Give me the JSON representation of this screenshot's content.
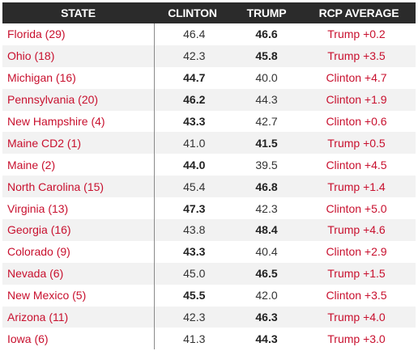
{
  "headers": {
    "state": "STATE",
    "clinton": "CLINTON",
    "trump": "TRUMP",
    "rcp": "RCP AVERAGE"
  },
  "rows": [
    {
      "state": "Florida (29)",
      "clinton": "46.4",
      "trump": "46.6",
      "rcp": "Trump +0.2",
      "leader": "trump"
    },
    {
      "state": "Ohio (18)",
      "clinton": "42.3",
      "trump": "45.8",
      "rcp": "Trump +3.5",
      "leader": "trump"
    },
    {
      "state": "Michigan (16)",
      "clinton": "44.7",
      "trump": "40.0",
      "rcp": "Clinton +4.7",
      "leader": "clinton"
    },
    {
      "state": "Pennsylvania (20)",
      "clinton": "46.2",
      "trump": "44.3",
      "rcp": "Clinton +1.9",
      "leader": "clinton"
    },
    {
      "state": "New Hampshire (4)",
      "clinton": "43.3",
      "trump": "42.7",
      "rcp": "Clinton +0.6",
      "leader": "clinton"
    },
    {
      "state": "Maine CD2 (1)",
      "clinton": "41.0",
      "trump": "41.5",
      "rcp": "Trump +0.5",
      "leader": "trump"
    },
    {
      "state": "Maine (2)",
      "clinton": "44.0",
      "trump": "39.5",
      "rcp": "Clinton +4.5",
      "leader": "clinton"
    },
    {
      "state": "North Carolina (15)",
      "clinton": "45.4",
      "trump": "46.8",
      "rcp": "Trump +1.4",
      "leader": "trump"
    },
    {
      "state": "Virginia (13)",
      "clinton": "47.3",
      "trump": "42.3",
      "rcp": "Clinton +5.0",
      "leader": "clinton"
    },
    {
      "state": "Georgia (16)",
      "clinton": "43.8",
      "trump": "48.4",
      "rcp": "Trump +4.6",
      "leader": "trump"
    },
    {
      "state": "Colorado (9)",
      "clinton": "43.3",
      "trump": "40.4",
      "rcp": "Clinton +2.9",
      "leader": "clinton"
    },
    {
      "state": "Nevada (6)",
      "clinton": "45.0",
      "trump": "46.5",
      "rcp": "Trump +1.5",
      "leader": "trump"
    },
    {
      "state": "New Mexico (5)",
      "clinton": "45.5",
      "trump": "42.0",
      "rcp": "Clinton +3.5",
      "leader": "clinton"
    },
    {
      "state": "Arizona (11)",
      "clinton": "42.3",
      "trump": "46.3",
      "rcp": "Trump +4.0",
      "leader": "trump"
    },
    {
      "state": "Iowa (6)",
      "clinton": "41.3",
      "trump": "44.3",
      "rcp": "Trump +3.0",
      "leader": "trump"
    }
  ],
  "colors": {
    "header_bg": "#2b2b2b",
    "header_text": "#ffffff",
    "state_text": "#c8102e",
    "rcp_text": "#c8102e",
    "stripe": "#f2f2f2"
  }
}
